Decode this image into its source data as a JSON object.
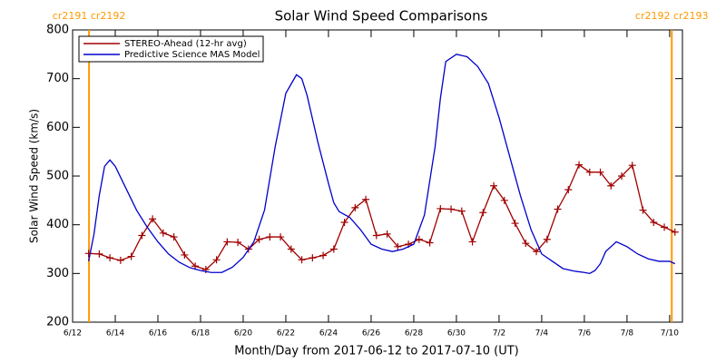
{
  "chart_data": {
    "type": "line",
    "title": "Solar Wind Speed Comparisons",
    "x_label": "Month/Day from 2017-06-12 to 2017-07-10 (UT)",
    "y_label": "Solar Wind Speed (km/s)",
    "xlim": [
      0,
      28.6
    ],
    "ylim": [
      200,
      800
    ],
    "yticks": [
      200,
      300,
      400,
      500,
      600,
      700,
      800
    ],
    "xticks": [
      {
        "value": 0,
        "label": "6/12"
      },
      {
        "value": 2,
        "label": "6/14"
      },
      {
        "value": 4,
        "label": "6/16"
      },
      {
        "value": 6,
        "label": "6/18"
      },
      {
        "value": 8,
        "label": "6/20"
      },
      {
        "value": 10,
        "label": "6/22"
      },
      {
        "value": 12,
        "label": "6/24"
      },
      {
        "value": 14,
        "label": "6/26"
      },
      {
        "value": 16,
        "label": "6/28"
      },
      {
        "value": 18,
        "label": "6/30"
      },
      {
        "value": 20,
        "label": "7/2"
      },
      {
        "value": 22,
        "label": "7/4"
      },
      {
        "value": 24,
        "label": "7/6"
      },
      {
        "value": 26,
        "label": "7/8"
      },
      {
        "value": 28,
        "label": "7/10"
      }
    ],
    "grid": false,
    "legend": "upper left",
    "annotations": [
      {
        "x": 0.77,
        "text": "cr2191 cr2192",
        "color": "#ff9900"
      },
      {
        "x": 28.1,
        "text": "cr2192 cr2193",
        "color": "#ff9900"
      }
    ],
    "series": [
      {
        "name": "STEREO-Ahead (12-hr avg)",
        "color": "#a00000",
        "marker": "plus",
        "x": [
          0.75,
          1.25,
          1.75,
          2.25,
          2.75,
          3.25,
          3.75,
          4.25,
          4.75,
          5.25,
          5.75,
          6.25,
          6.75,
          7.25,
          7.75,
          8.25,
          8.75,
          9.25,
          9.75,
          10.25,
          10.75,
          11.25,
          11.75,
          12.25,
          12.75,
          13.25,
          13.75,
          14.25,
          14.75,
          15.25,
          15.75,
          16.25,
          16.75,
          17.25,
          17.75,
          18.25,
          18.75,
          19.25,
          19.75,
          20.25,
          20.75,
          21.25,
          21.75,
          22.25,
          22.75,
          23.25,
          23.75,
          24.25,
          24.75,
          25.25,
          25.75,
          26.25,
          26.75,
          27.25,
          27.75,
          28.25
        ],
        "values": [
          341,
          340,
          332,
          327,
          335,
          378,
          412,
          383,
          375,
          338,
          315,
          308,
          328,
          365,
          364,
          350,
          370,
          375,
          375,
          350,
          328,
          332,
          337,
          350,
          405,
          435,
          452,
          378,
          381,
          355,
          360,
          370,
          363,
          433,
          432,
          428,
          365,
          425,
          480,
          450,
          403,
          362,
          345,
          370,
          432,
          472,
          523,
          508,
          508,
          480,
          500,
          522,
          430,
          405,
          395,
          385
        ]
      },
      {
        "name": "Predictive Science MAS Model",
        "color": "#0000cc",
        "marker": "none",
        "x": [
          0.75,
          1,
          1.25,
          1.5,
          1.75,
          2,
          2.5,
          3,
          3.5,
          4,
          4.5,
          5,
          5.5,
          6,
          6.5,
          7,
          7.5,
          8,
          8.5,
          9,
          9.5,
          10,
          10.5,
          10.75,
          11,
          11.5,
          12,
          12.25,
          12.5,
          13,
          13.5,
          14,
          14.5,
          15,
          15.5,
          16,
          16.5,
          17,
          17.25,
          17.5,
          18,
          18.5,
          19,
          19.5,
          20,
          20.5,
          21,
          21.5,
          22,
          22.5,
          23,
          23.5,
          24,
          24.25,
          24.5,
          24.75,
          25,
          25.5,
          26,
          26.5,
          27,
          27.5,
          28,
          28.25
        ],
        "values": [
          325,
          380,
          460,
          520,
          533,
          520,
          475,
          430,
          395,
          365,
          340,
          323,
          312,
          306,
          302,
          302,
          313,
          333,
          365,
          430,
          560,
          670,
          708,
          700,
          665,
          570,
          485,
          445,
          427,
          415,
          390,
          360,
          350,
          345,
          350,
          360,
          420,
          560,
          660,
          735,
          750,
          745,
          725,
          690,
          620,
          540,
          460,
          390,
          340,
          325,
          310,
          305,
          302,
          300,
          306,
          320,
          345,
          365,
          355,
          340,
          330,
          325,
          325,
          320
        ]
      }
    ]
  }
}
